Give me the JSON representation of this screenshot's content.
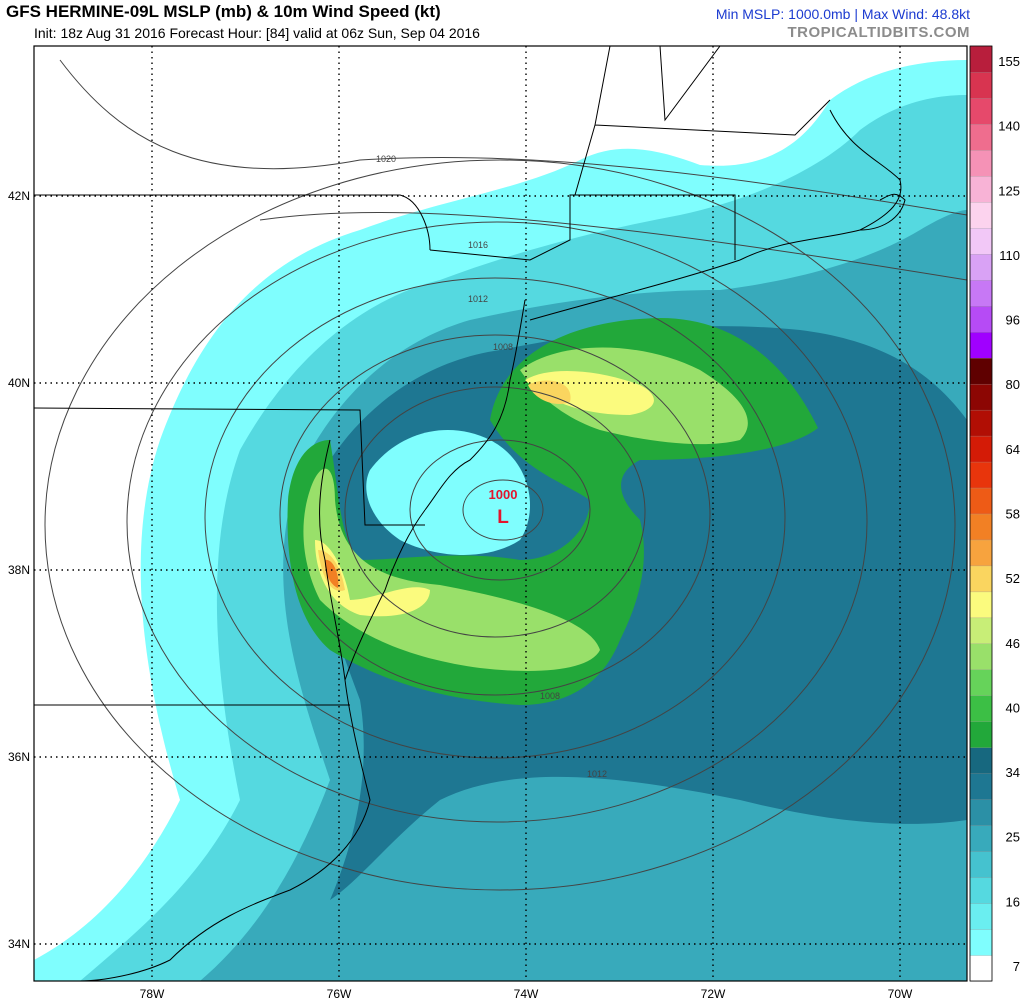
{
  "header": {
    "title": "GFS HERMINE-09L MSLP (mb) & 10m Wind Speed (kt)",
    "init_line": "Init: 18z Aug 31 2016   Forecast Hour: [84]   valid at 06z Sun, Sep 04 2016",
    "min_max": "Min MSLP: 1000.0mb | Max Wind: 48.8kt",
    "brand": "TROPICALTIDBITS.COM"
  },
  "axes": {
    "lat_labels": [
      "42N",
      "40N",
      "38N",
      "36N",
      "34N"
    ],
    "lon_labels": [
      "78W",
      "76W",
      "74W",
      "72W",
      "70W"
    ]
  },
  "low_center": {
    "pressure_label": "1000",
    "marker": "L",
    "lat": 38.6,
    "lon": -74.2
  },
  "isobar_labels": [
    "1020",
    "1016",
    "1012",
    "1008",
    "1008",
    "1012"
  ],
  "colorbar": {
    "ticks": [
      "155",
      "140",
      "125",
      "110",
      "96",
      "80",
      "64",
      "58",
      "52",
      "46",
      "40",
      "34",
      "25",
      "16",
      "7"
    ],
    "colors": [
      "#ffffff",
      "#7ffefe",
      "#6aeef0",
      "#55d9e0",
      "#45c2cf",
      "#38aabb",
      "#2b90a6",
      "#1e7792",
      "#17687f",
      "#22a83a",
      "#3cbf45",
      "#66d35a",
      "#99e06a",
      "#c8ee77",
      "#fbfb7e",
      "#fad55f",
      "#f7a33e",
      "#f28024",
      "#ee5b16",
      "#e8350c",
      "#d41b06",
      "#b10e04",
      "#8c0603",
      "#5f0000",
      "#a000ff",
      "#b64bf5",
      "#c778f5",
      "#d9a2f5",
      "#f2c8f7",
      "#fcd3ee",
      "#f8b3d6",
      "#f592b6",
      "#ef6d8e",
      "#e6496b",
      "#d83450",
      "#b81e3c"
    ]
  },
  "colors": {
    "land_outline": "#000000",
    "isobar": "#444444",
    "low_marker": "#e3142c",
    "header_blue": "#1c3bd0",
    "brand_gray": "#8c8c8c"
  }
}
